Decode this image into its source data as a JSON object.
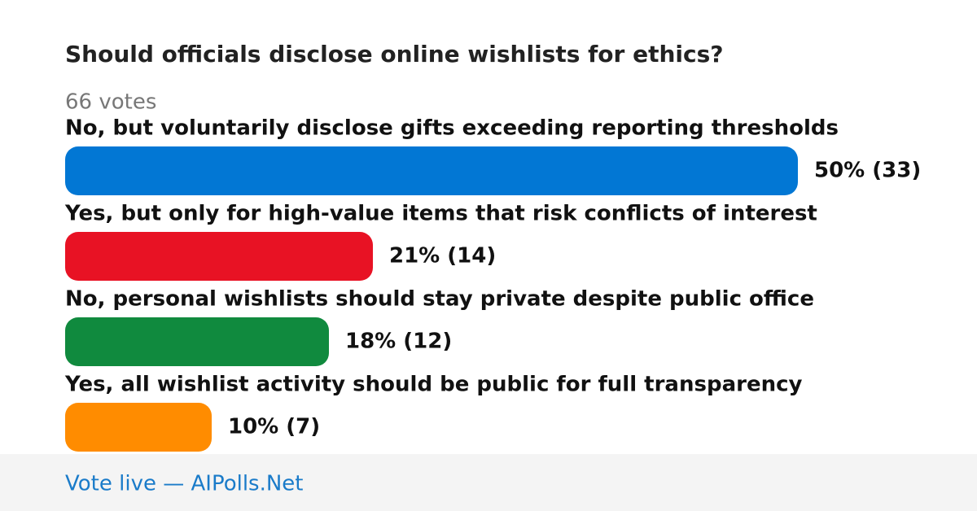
{
  "chart_data": {
    "type": "bar",
    "orientation": "horizontal",
    "title": "Should officials disclose online wishlists for ethics?",
    "subtitle": "66 votes",
    "categories": [
      "No, but voluntarily disclose gifts exceeding reporting thresholds",
      "Yes, but only for high-value items that risk conflicts of interest",
      "No, personal wishlists should stay private despite public office",
      "Yes, all wishlist activity should be public for full transparency"
    ],
    "values": [
      50,
      21,
      18,
      10
    ],
    "value_labels": [
      "50% (33)",
      "21% (14)",
      "18% (12)",
      "10% (7)"
    ],
    "colors": [
      "#0277d4",
      "#e81224",
      "#108a3e",
      "#ff8c00"
    ]
  },
  "footer": "Vote live — AIPolls.Net"
}
